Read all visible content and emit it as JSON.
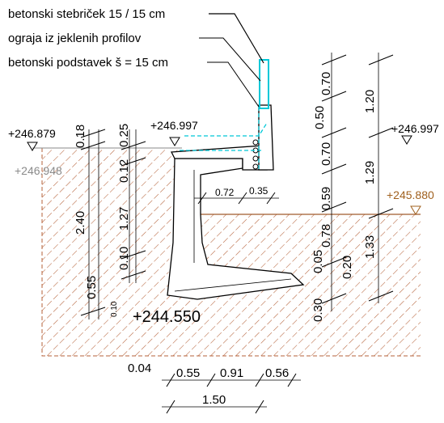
{
  "labels": {
    "post": "betonski stebriček 15 / 15 cm",
    "railing": "ograja iz jeklenih profilov",
    "base": "betonski podstavek š = 15 cm"
  },
  "elevations": {
    "left_top": "+246.879",
    "left_under": "+246.948",
    "mid": "+246.997",
    "right_top": "+246.997",
    "right_terrain": "+245.880",
    "bottom": "+244.550"
  },
  "dimensions": {
    "d_018": "0.18",
    "d_025": "0.25",
    "d_012": "0.12",
    "d_240": "2.40",
    "d_127": "1.27",
    "d_010": "0.10",
    "d_055": "0.55",
    "d_bottom_small": "0.10",
    "d_072": "0.72",
    "d_035": "0.35",
    "d_070a": "0.70",
    "d_050": "0.50",
    "d_070b": "0.70",
    "d_059": "0.59",
    "d_078": "0.78",
    "d_005": "0.05",
    "d_020": "0.20",
    "d_030": "0.30",
    "d_120": "1.20",
    "d_129": "1.29",
    "d_133": "1.33",
    "d_004": "0.04",
    "d_055b": "0.55",
    "d_091": "0.91",
    "d_056": "0.56",
    "d_150": "1.50"
  },
  "colors": {
    "hatch": "#b5623a",
    "terrain_line": "#a05a2c",
    "railing": "#00c8d8",
    "elevation_grey": "#8a8a8a",
    "elevation_brown": "#a0601e"
  }
}
